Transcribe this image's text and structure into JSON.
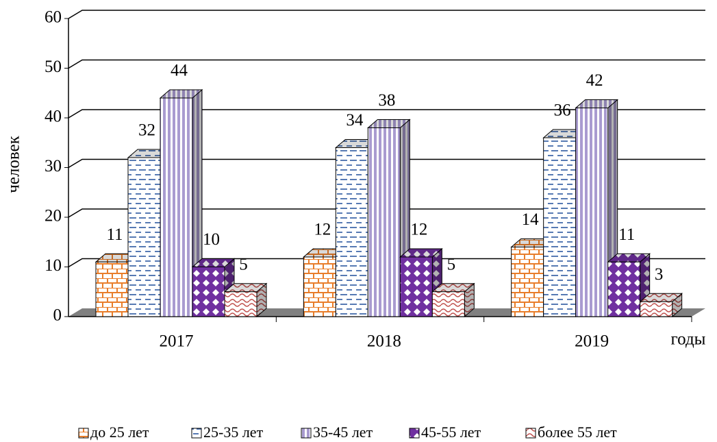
{
  "chart_data": {
    "type": "bar",
    "categories": [
      "2017",
      "2018",
      "2019"
    ],
    "series": [
      {
        "name": "до 25 лет",
        "color": "#e87d2a",
        "values": [
          11,
          12,
          14
        ]
      },
      {
        "name": "25-35 лет",
        "color": "#1f4e9a",
        "values": [
          32,
          34,
          36
        ]
      },
      {
        "name": "35-45 лет",
        "color": "#a99bd0",
        "values": [
          44,
          38,
          42
        ]
      },
      {
        "name": "45-55 лет",
        "color": "#7030a0",
        "values": [
          10,
          12,
          11
        ]
      },
      {
        "name": "более 55 лет",
        "color": "#c0504d",
        "values": [
          5,
          5,
          3
        ]
      }
    ],
    "ylim": [
      0,
      60
    ],
    "yticks": [
      0,
      10,
      20,
      30,
      40,
      50,
      60
    ],
    "y_label": "человек",
    "x_label": "годы",
    "grid": true
  }
}
